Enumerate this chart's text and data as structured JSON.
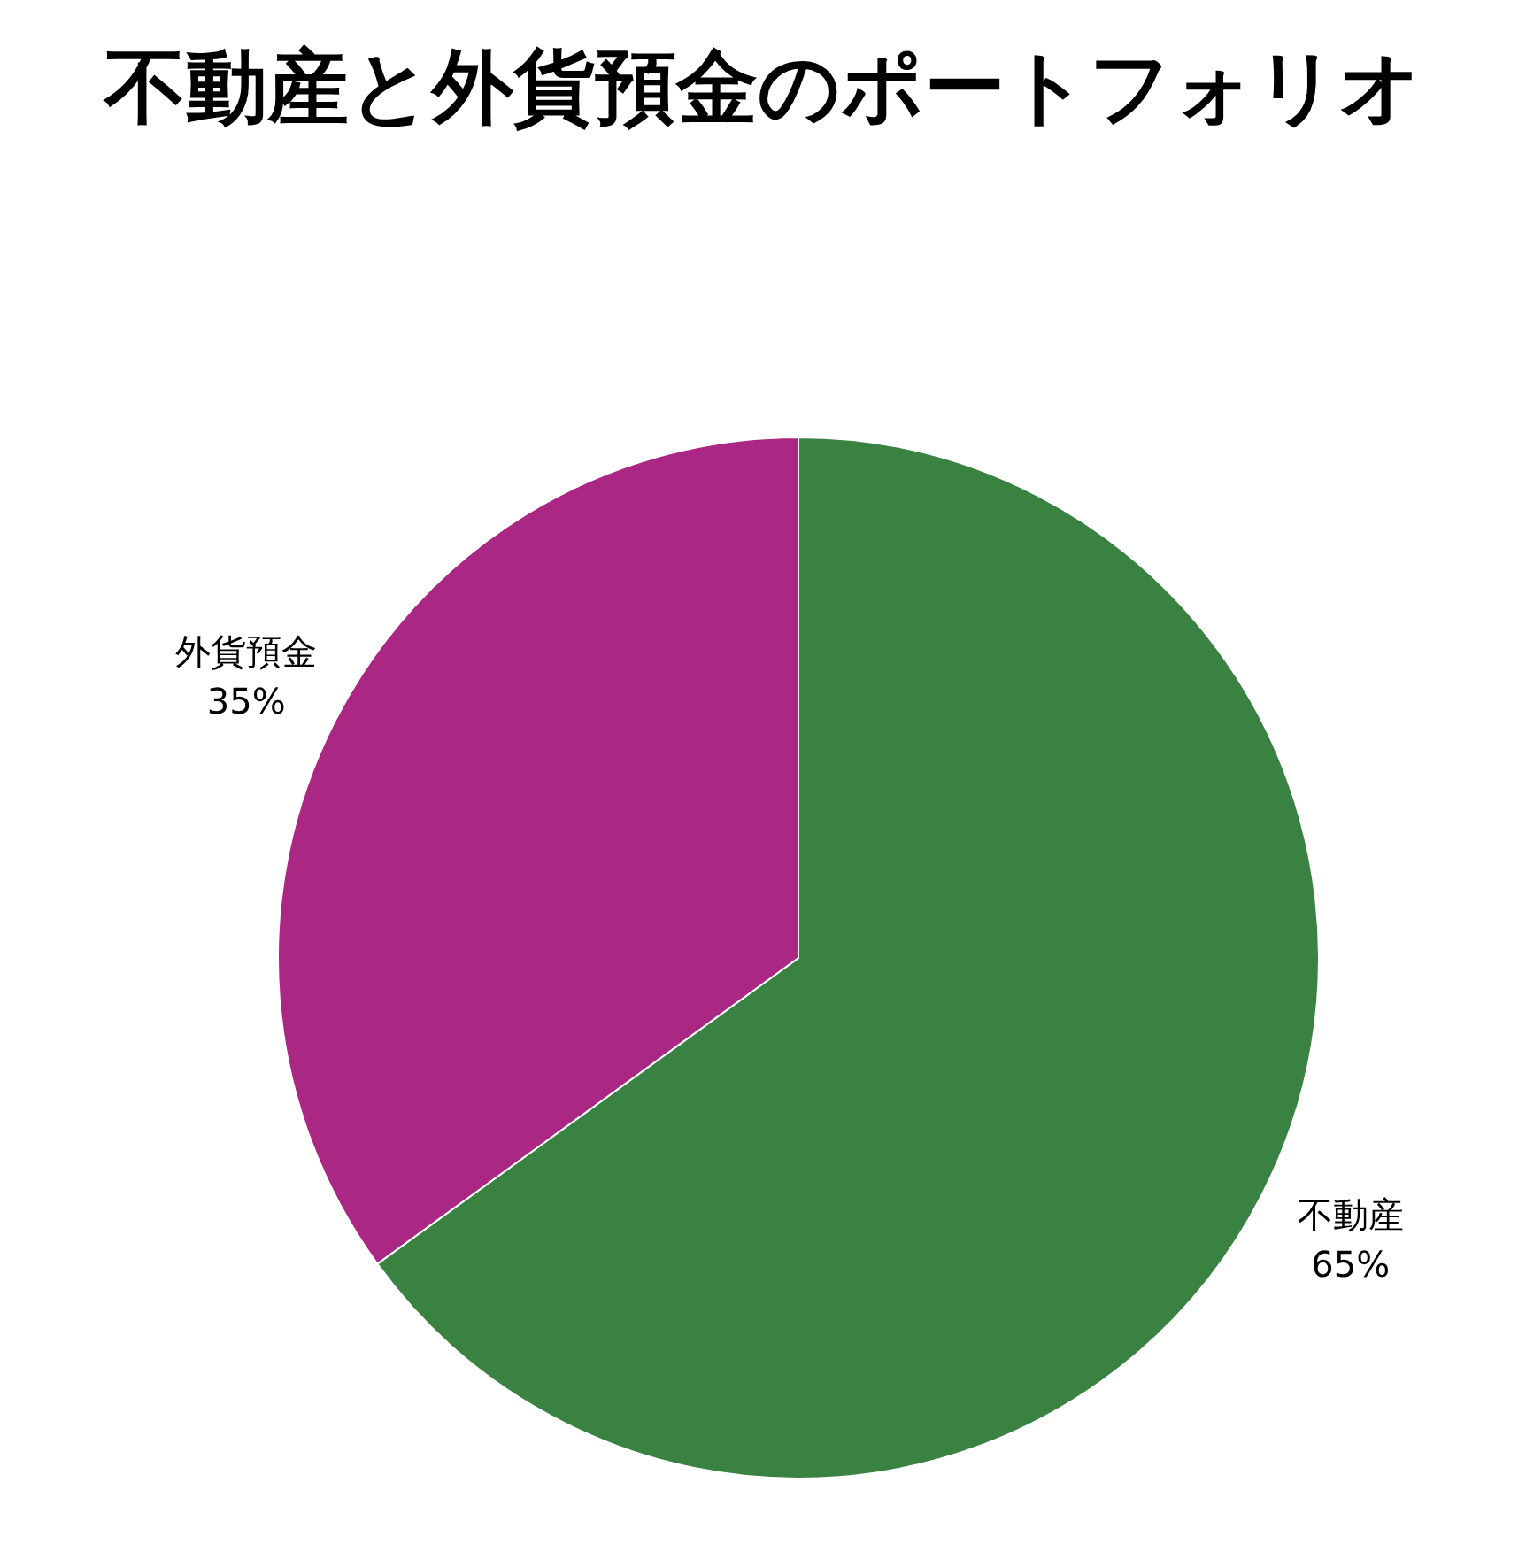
{
  "chart_data": {
    "type": "pie",
    "title": "不動産と外貨預金のポートフォリオ",
    "categories": [
      "不動産",
      "外貨預金"
    ],
    "values": [
      65,
      35
    ],
    "colors": [
      "#3a8242",
      "#aa2783"
    ],
    "value_labels": [
      "65%",
      "35%"
    ],
    "legend": false
  }
}
